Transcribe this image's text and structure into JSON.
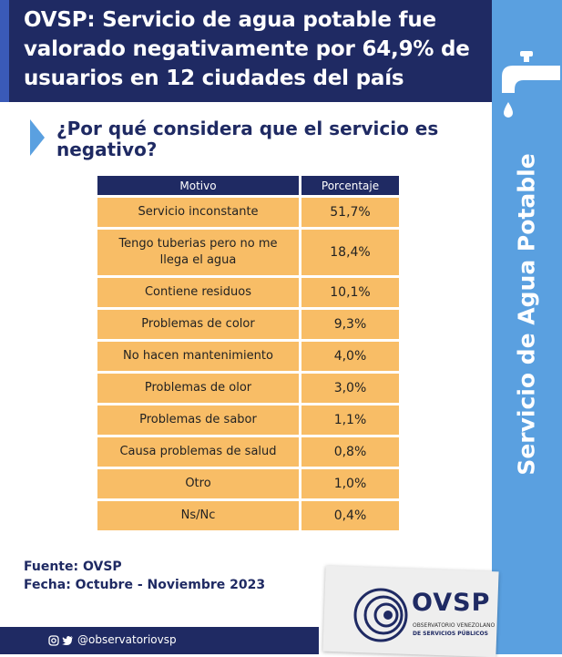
{
  "header": {
    "title": "OVSP: Servicio de agua potable fue valorado negativamente por 64,9% de usuarios en 12 ciudades del país"
  },
  "sidebar": {
    "title": "Servicio de Agua Potable",
    "icon": "faucet-icon"
  },
  "question": "¿Por qué considera que el servicio es negativo?",
  "table": {
    "headers": [
      "Motivo",
      "Porcentaje"
    ],
    "rows": [
      {
        "motivo": "Servicio inconstante",
        "porcentaje": "51,7%"
      },
      {
        "motivo": "Tengo tuberias pero no me llega el agua",
        "porcentaje": "18,4%"
      },
      {
        "motivo": "Contiene residuos",
        "porcentaje": "10,1%"
      },
      {
        "motivo": "Problemas de color",
        "porcentaje": "9,3%"
      },
      {
        "motivo": "No hacen mantenimiento",
        "porcentaje": "4,0%"
      },
      {
        "motivo": "Problemas de olor",
        "porcentaje": "3,0%"
      },
      {
        "motivo": "Problemas de sabor",
        "porcentaje": "1,1%"
      },
      {
        "motivo": "Causa problemas de salud",
        "porcentaje": "0,8%"
      },
      {
        "motivo": "Otro",
        "porcentaje": "1,0%"
      },
      {
        "motivo": "Ns/Nc",
        "porcentaje": "0,4%"
      }
    ]
  },
  "source": {
    "fuente": "Fuente: OVSP",
    "fecha": "Fecha: Octubre - Noviembre 2023"
  },
  "footer": {
    "social_handle": "@observatoriovsp",
    "icons": [
      "instagram-icon",
      "twitter-icon"
    ]
  },
  "logo": {
    "name": "OVSP",
    "subtitle_line1": "OBSERVATORIO VENEZOLANO",
    "subtitle_line2": "DE SERVICIOS PÚBLICOS"
  },
  "colors": {
    "navy": "#1f2a63",
    "sky_blue": "#5aa0e0",
    "orange": "#f8bd66",
    "accent_blue": "#3a5ab8"
  }
}
